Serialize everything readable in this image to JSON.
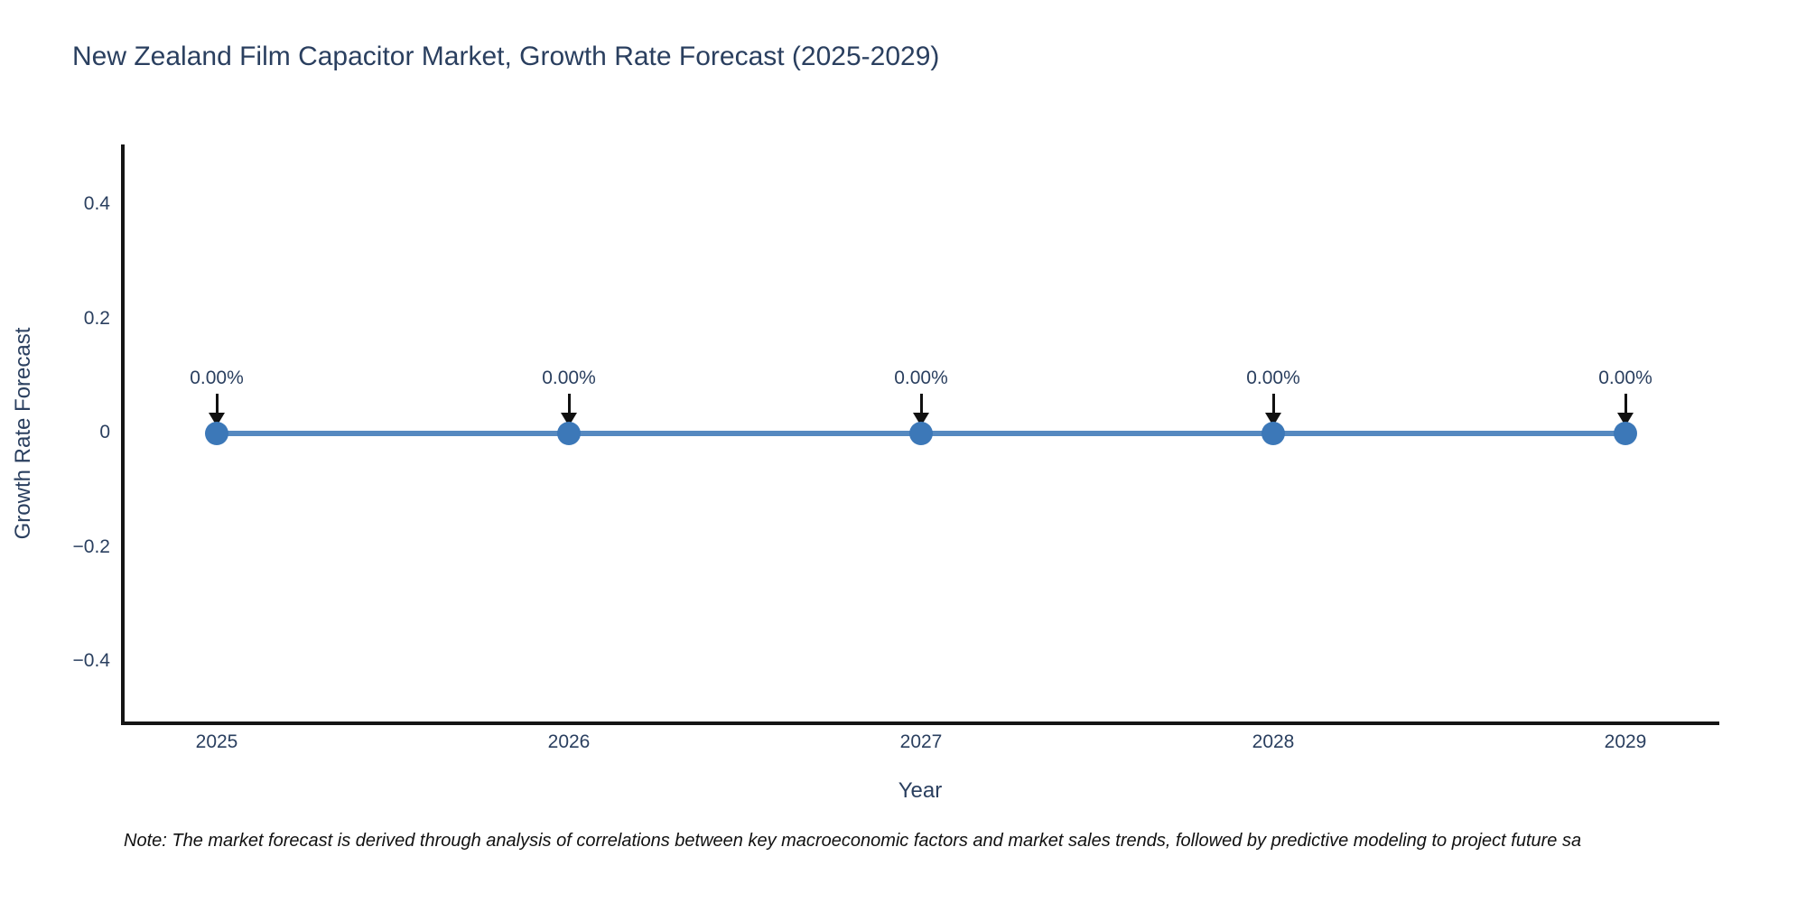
{
  "chart_data": {
    "type": "line",
    "title": "New Zealand Film Capacitor Market, Growth Rate Forecast (2025-2029)",
    "xlabel": "Year",
    "ylabel": "Growth Rate Forecast",
    "categories": [
      "2025",
      "2026",
      "2027",
      "2028",
      "2029"
    ],
    "series": [
      {
        "name": "Growth Rate Forecast",
        "values": [
          0,
          0,
          0,
          0,
          0
        ]
      }
    ],
    "point_labels": [
      "0.00%",
      "0.00%",
      "0.00%",
      "0.00%",
      "0.00%"
    ],
    "yticks": [
      "0.4",
      "0.2",
      "0",
      "−0.2",
      "−0.4"
    ],
    "ylim": [
      -0.5,
      0.5
    ],
    "grid": false,
    "legend_position": "none",
    "annotation_style": "down-arrow-to-point",
    "colors": {
      "line": "#5589c0",
      "marker": "#3c78b8",
      "arrow": "#111111",
      "text": "#2a3f5f",
      "axis": "#151515",
      "background": "#ffffff"
    }
  },
  "note": {
    "text": "Note: The market forecast is derived through analysis of correlations between key macroeconomic factors and market sales trends, followed by predictive modeling to project future sa"
  }
}
